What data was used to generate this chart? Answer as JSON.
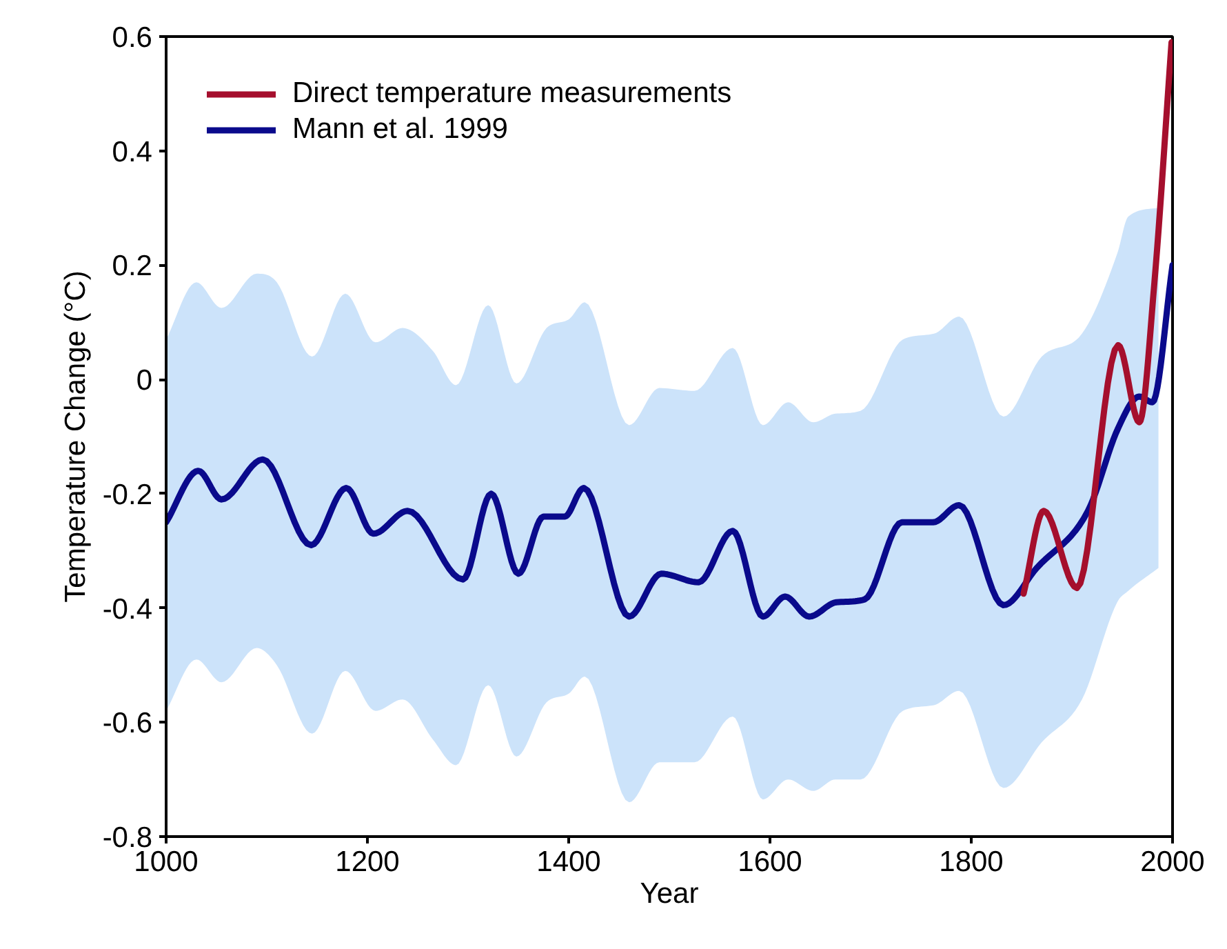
{
  "chart_data": {
    "type": "line",
    "xlabel": "Year",
    "ylabel": "Temperature Change (°C)",
    "xlim": [
      1000,
      2000
    ],
    "ylim": [
      -0.8,
      0.6
    ],
    "xticks": [
      1000,
      1200,
      1400,
      1600,
      1800,
      2000
    ],
    "yticks": [
      -0.8,
      -0.6,
      -0.4,
      -0.2,
      0,
      0.2,
      0.4,
      0.6
    ],
    "grid": false,
    "legend": "top left",
    "series": [
      {
        "type": "line",
        "color": "#cce3fa",
        "x": [
          1000,
          1030,
          1055,
          1090,
          1110,
          1145,
          1178,
          1208,
          1235,
          1265,
          1288,
          1320,
          1348,
          1378,
          1400,
          1416,
          1460,
          1490,
          1525,
          1563,
          1593,
          1618,
          1643,
          1665,
          1690,
          1732,
          1763,
          1788,
          1832,
          1870,
          1910,
          1945,
          1956,
          1986
        ],
        "values": [
          null,
          null,
          null,
          null,
          null,
          null,
          null,
          null,
          null,
          null,
          null,
          null,
          null,
          null,
          null,
          null,
          null,
          null,
          null,
          null,
          null,
          null,
          null,
          null,
          null,
          null,
          null,
          null,
          null,
          null,
          null,
          null,
          null,
          null
        ],
        "upper": [
          0.07,
          0.17,
          0.125,
          0.185,
          0.17,
          0.04,
          0.15,
          0.065,
          0.09,
          0.05,
          -0.01,
          0.13,
          -0.007,
          0.09,
          0.105,
          0.135,
          -0.08,
          -0.015,
          -0.02,
          0.055,
          -0.08,
          -0.04,
          -0.075,
          -0.06,
          -0.055,
          0.07,
          0.08,
          0.11,
          -0.065,
          0.04,
          0.08,
          0.22,
          0.285,
          0.3
        ],
        "lower": [
          -0.58,
          -0.49,
          -0.53,
          -0.47,
          -0.5,
          -0.62,
          -0.51,
          -0.58,
          -0.56,
          -0.63,
          -0.675,
          -0.535,
          -0.66,
          -0.565,
          -0.55,
          -0.52,
          -0.74,
          -0.67,
          -0.67,
          -0.59,
          -0.735,
          -0.7,
          -0.72,
          -0.7,
          -0.7,
          -0.58,
          -0.57,
          -0.545,
          -0.715,
          -0.635,
          -0.56,
          -0.39,
          -0.37,
          -0.33
        ]
      },
      {
        "name": "Direct temperature measurements",
        "color": "#a50f2d",
        "x": [
          1852,
          1872,
          1905,
          1946,
          1967,
          1982,
          1999
        ],
        "values": [
          -0.375,
          -0.23,
          -0.365,
          0.06,
          -0.075,
          0.17,
          0.59
        ]
      },
      {
        "name": "Mann et al. 1999",
        "color": "#0a0a8c",
        "x": [
          1000,
          1032,
          1055,
          1096,
          1144,
          1179,
          1206,
          1240,
          1295,
          1323,
          1350,
          1375,
          1396,
          1415,
          1460,
          1492,
          1529,
          1563,
          1593,
          1615,
          1639,
          1666,
          1694,
          1731,
          1762,
          1788,
          1832,
          1865,
          1916,
          1946,
          1967,
          1980,
          2000
        ],
        "values": [
          -0.25,
          -0.16,
          -0.21,
          -0.14,
          -0.29,
          -0.19,
          -0.27,
          -0.23,
          -0.35,
          -0.2,
          -0.34,
          -0.24,
          -0.24,
          -0.19,
          -0.415,
          -0.34,
          -0.355,
          -0.265,
          -0.415,
          -0.38,
          -0.415,
          -0.39,
          -0.385,
          -0.25,
          -0.25,
          -0.22,
          -0.395,
          -0.33,
          -0.23,
          -0.085,
          -0.03,
          -0.04,
          0.2
        ]
      }
    ]
  }
}
